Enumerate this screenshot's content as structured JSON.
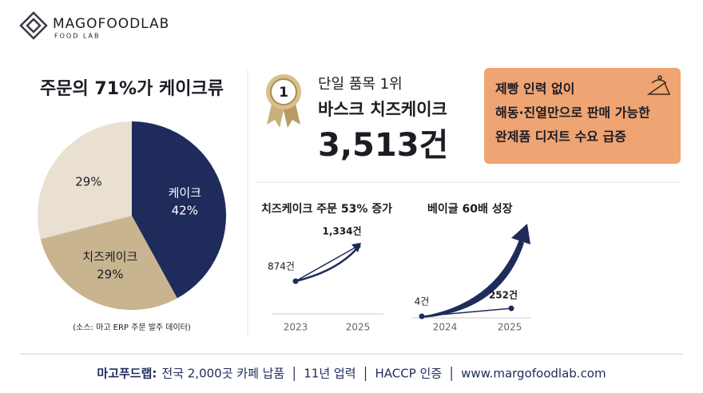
{
  "logo": {
    "name": "MAGOFOODLAB",
    "tagline": "FOOD LAB"
  },
  "chart_data": [
    {
      "type": "pie",
      "title": "주문의 71%가 케이크류",
      "categories": [
        "케이크",
        "치즈케이크",
        null
      ],
      "values": [
        42,
        29,
        29
      ],
      "value_labels": [
        "42%",
        "29%",
        "29%"
      ],
      "colors": [
        "#1f2b5b",
        "#c8b48f",
        "#e9e0d2"
      ],
      "note": "(소스: 마고 ERP 주문 발주 데이터)"
    },
    {
      "type": "line",
      "title": "치즈케이크 주문 53% 증가",
      "categories": [
        "2023",
        "2025"
      ],
      "values": [
        874,
        1334
      ],
      "value_labels": [
        "874건",
        "1,334건"
      ],
      "color": "#1f2b5b"
    },
    {
      "type": "line",
      "title": "베이글 60배 성장",
      "categories": [
        "2024",
        "2025"
      ],
      "values": [
        4,
        252
      ],
      "value_labels": [
        "4건",
        "252건"
      ],
      "color": "#1f2b5b"
    }
  ],
  "highlight": {
    "badge": "1",
    "label": "단일 품목 1위",
    "item": "바스크 치즈케이크",
    "count": "3,513건"
  },
  "callout": {
    "lines": [
      "제빵 인력 없이",
      "해동·진열만으로 판매 가능한",
      "완제품 디저트 수요 급증"
    ]
  },
  "footer": {
    "brand": "마고푸드랩:",
    "items": [
      "전국 2,000곳 카페 납품",
      "11년 업력",
      "HACCP 인증",
      "www.margofoodlab.com"
    ]
  }
}
